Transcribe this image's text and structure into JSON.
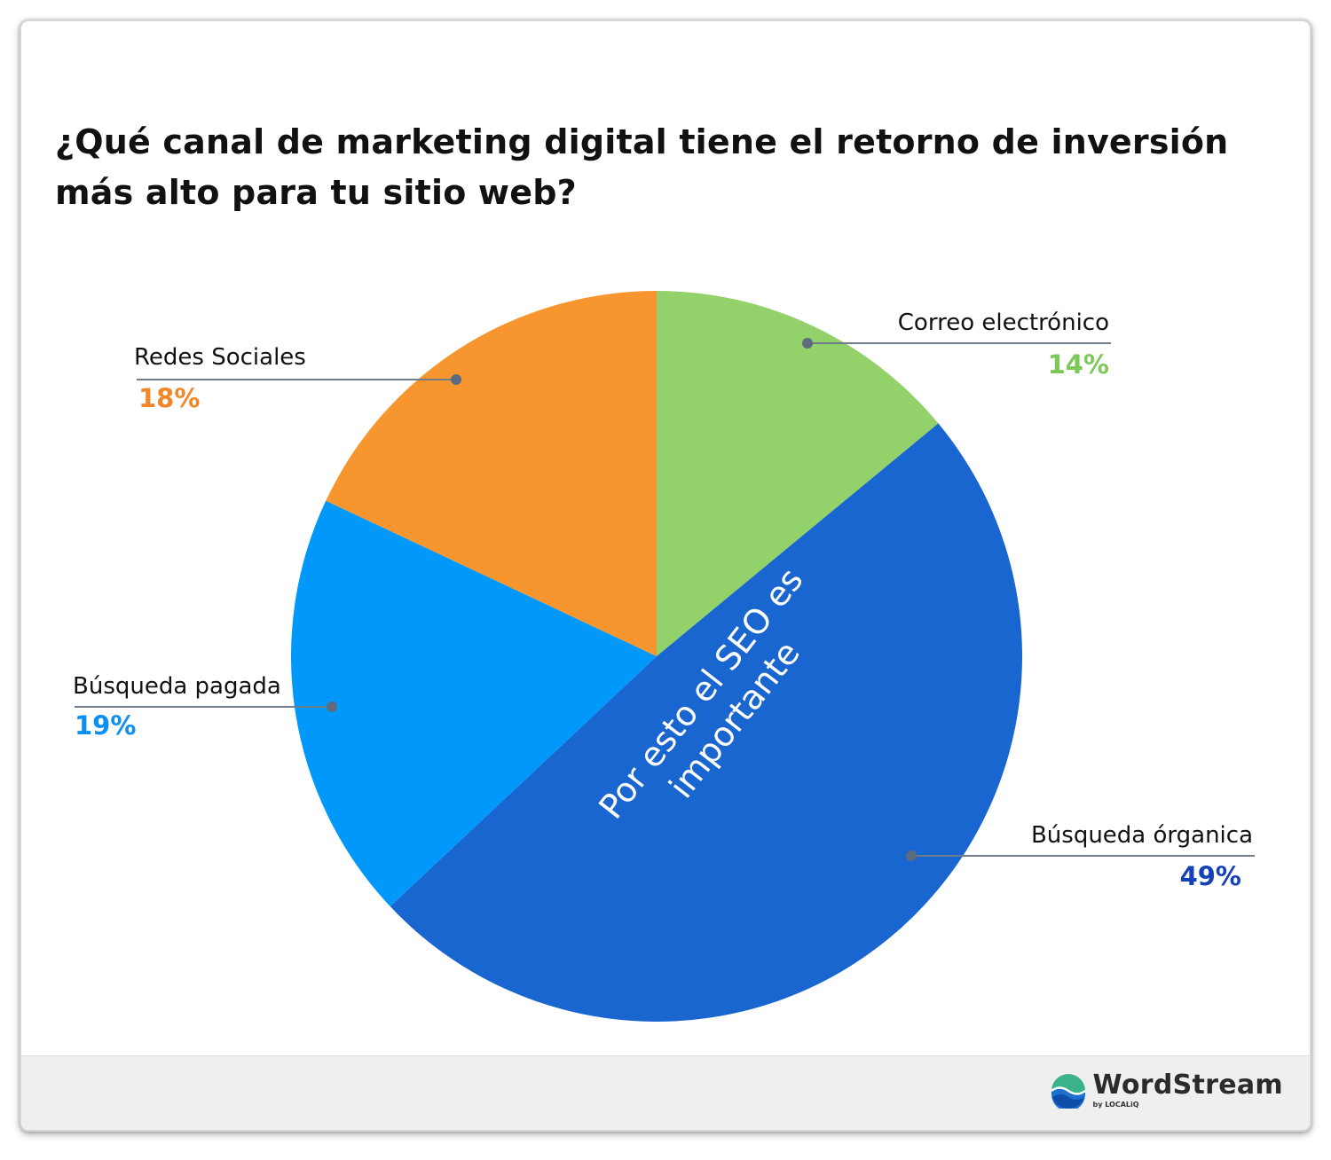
{
  "title": "¿Qué canal de marketing digital tiene el retorno de inversión más alto para tu sitio web?",
  "chart_data": {
    "type": "pie",
    "categories": [
      "Correo electrónico",
      "Búsqueda órganica",
      "Búsqueda pagada",
      "Redes Sociales"
    ],
    "values": [
      14,
      49,
      19,
      18
    ],
    "value_labels": [
      "14%",
      "49%",
      "19%",
      "18%"
    ],
    "colors": [
      "#93d26b",
      "#1a66d0",
      "#0098fb",
      "#f7962f"
    ],
    "label_colors": [
      "#7cc95a",
      "#1542b8",
      "#0b8ff0",
      "#f2872a"
    ],
    "start_angle_deg": 0,
    "direction": "clockwise",
    "overlay_text": [
      "Por esto el SEO es",
      "importante"
    ],
    "legend": "none"
  },
  "footer": {
    "brand_name": "WordStream",
    "brand_sub": "by LOCALiQ"
  }
}
